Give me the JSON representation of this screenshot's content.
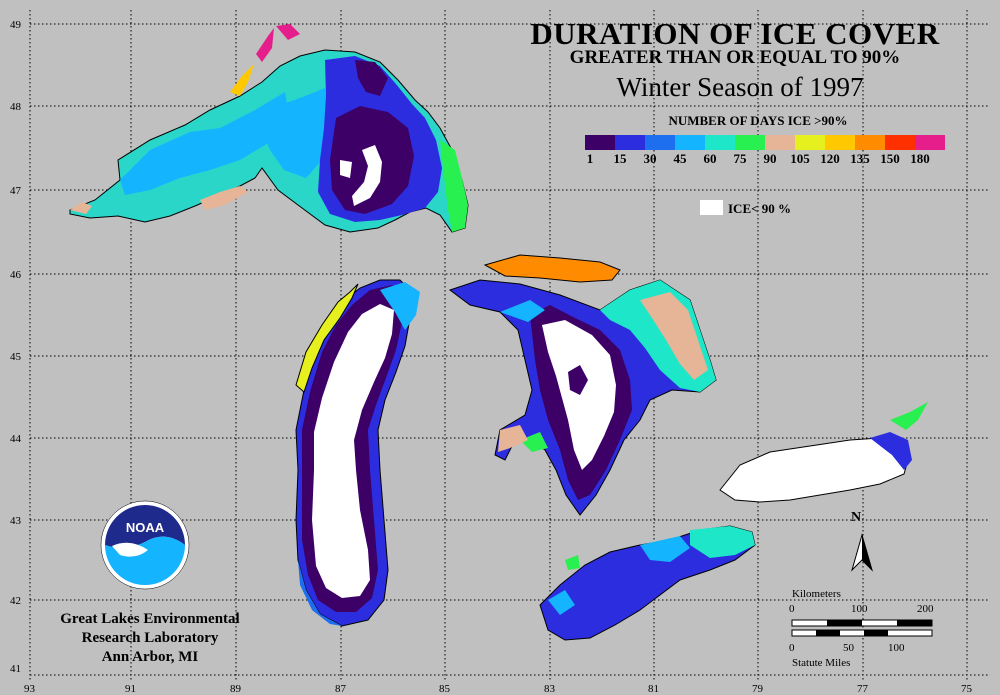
{
  "title": {
    "line1": "DURATION OF ICE COVER",
    "line2": "GREATER THAN OR EQUAL TO 90%",
    "line3": "Winter Season of 1997"
  },
  "legend": {
    "title": "NUMBER OF DAYS ICE >90%",
    "colors": [
      "#3d0066",
      "#2d2de0",
      "#1e6ef0",
      "#14b4ff",
      "#1ee6c8",
      "#28f050",
      "#e6b496",
      "#e6f01e",
      "#ffc800",
      "#ff8c00",
      "#ff3000",
      "#e61e8c"
    ],
    "ticks": [
      "1",
      "15",
      "30",
      "45",
      "60",
      "75",
      "90",
      "105",
      "120",
      "135",
      "150",
      "180"
    ],
    "ice_label": "ICE< 90 %",
    "ice_color": "#ffffff"
  },
  "axes": {
    "longitude_labels": [
      "93",
      "91",
      "89",
      "87",
      "85",
      "83",
      "81",
      "79",
      "77",
      "75"
    ],
    "latitude_labels": [
      "49",
      "48",
      "47",
      "46",
      "45",
      "44",
      "43",
      "42",
      "41"
    ]
  },
  "organization": {
    "line1": "Great Lakes Environmental",
    "line2": "Research Laboratory",
    "line3": "Ann Arbor, MI",
    "logo_text": "NOAA"
  },
  "scale": {
    "km_label": "Kilometers",
    "km_ticks": [
      "0",
      "100",
      "200"
    ],
    "mi_label": "Statute Miles",
    "mi_ticks": [
      "0",
      "50",
      "100"
    ],
    "north_label": "N"
  }
}
